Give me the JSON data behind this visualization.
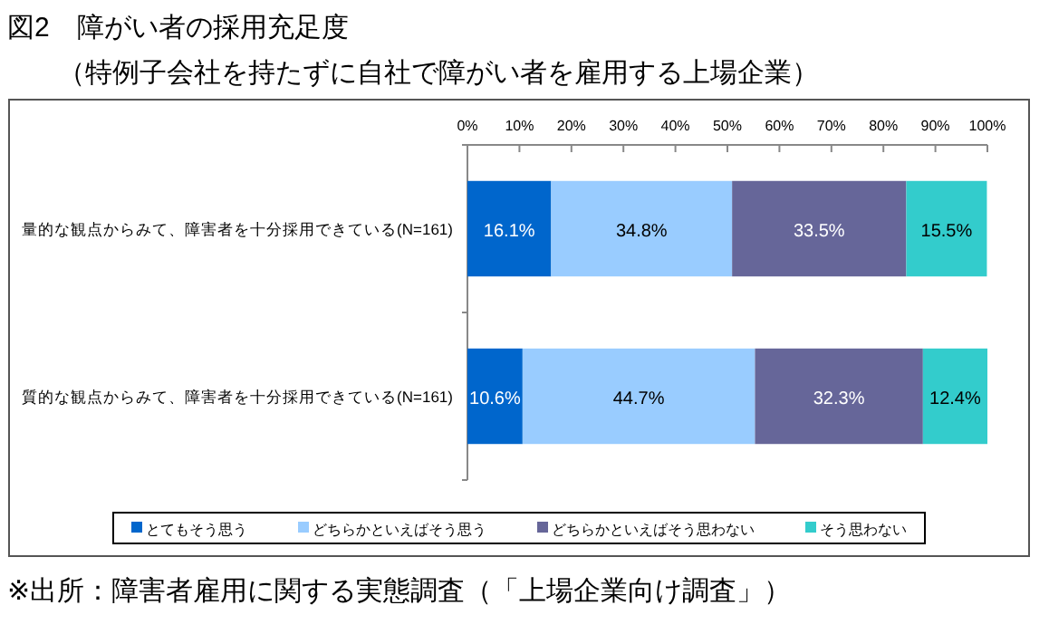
{
  "chart_data": {
    "type": "bar",
    "orientation": "horizontal",
    "stacked": true,
    "title": "図2　障がい者の採用充足度",
    "subtitle": "（特例子会社を持たずに自社で障がい者を雇用する上場企業）",
    "categories": [
      "量的な観点からみて、障害者を十分採用できている(N=161)",
      "質的な観点からみて、障害者を十分採用できている(N=161)"
    ],
    "series": [
      {
        "name": "とてもそう思う",
        "color": "#0066cc",
        "values": [
          16.1,
          10.6
        ],
        "value_labels": [
          "16.1%",
          "10.6%"
        ]
      },
      {
        "name": "どちらかといえばそう思う",
        "color": "#99ccff",
        "values": [
          34.8,
          44.7
        ],
        "value_labels": [
          "34.8%",
          "44.7%"
        ]
      },
      {
        "name": "どちらかといえばそう思わない",
        "color": "#666699",
        "values": [
          33.5,
          32.3
        ],
        "value_labels": [
          "33.5%",
          "32.3%"
        ]
      },
      {
        "name": "そう思わない",
        "color": "#33cccc",
        "values": [
          15.5,
          12.4
        ],
        "value_labels": [
          "15.5%",
          "12.4%"
        ]
      }
    ],
    "xlim": [
      0,
      100
    ],
    "xticks": [
      {
        "value": 0,
        "label": "0%"
      },
      {
        "value": 10,
        "label": "10%"
      },
      {
        "value": 20,
        "label": "20%"
      },
      {
        "value": 30,
        "label": "30%"
      },
      {
        "value": 40,
        "label": "40%"
      },
      {
        "value": 50,
        "label": "50%"
      },
      {
        "value": 60,
        "label": "60%"
      },
      {
        "value": 70,
        "label": "70%"
      },
      {
        "value": 80,
        "label": "80%"
      },
      {
        "value": 90,
        "label": "90%"
      },
      {
        "value": 100,
        "label": "100%"
      }
    ],
    "grid": false,
    "legend": "bottom",
    "annotations": [
      "※出所：障害者雇用に関する実態調査（「上場企業向け調査」）"
    ]
  }
}
